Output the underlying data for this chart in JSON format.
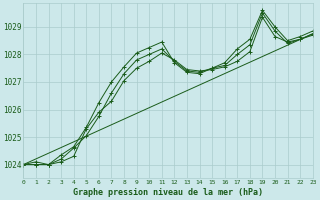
{
  "background_color": "#cce8ea",
  "plot_bg_color": "#cce8ea",
  "grid_color": "#aacccc",
  "line_color": "#1a5c1a",
  "title": "Graphe pression niveau de la mer (hPa)",
  "ylabel_ticks": [
    1024,
    1025,
    1026,
    1027,
    1028,
    1029
  ],
  "xlim": [
    0,
    23
  ],
  "ylim": [
    1023.5,
    1029.85
  ],
  "series": [
    [
      1024.0,
      1024.1,
      1024.0,
      1024.1,
      1024.3,
      1025.3,
      1025.9,
      1026.3,
      1027.05,
      1027.5,
      1027.75,
      1028.05,
      1027.8,
      1027.45,
      1027.4,
      1027.45,
      1027.55,
      1027.75,
      1028.1,
      1029.35,
      1028.65,
      1028.45,
      1028.55,
      1028.7
    ],
    [
      1024.0,
      1024.0,
      1024.0,
      1024.2,
      1024.6,
      1025.05,
      1025.75,
      1026.6,
      1027.3,
      1027.8,
      1028.0,
      1028.2,
      1027.75,
      1027.4,
      1027.35,
      1027.5,
      1027.6,
      1028.0,
      1028.35,
      1029.5,
      1028.85,
      1028.4,
      1028.55,
      1028.75
    ],
    [
      1024.0,
      1024.0,
      1024.0,
      1024.35,
      1024.65,
      1025.35,
      1026.25,
      1027.0,
      1027.55,
      1028.05,
      1028.25,
      1028.45,
      1027.7,
      1027.35,
      1027.3,
      1027.5,
      1027.7,
      1028.2,
      1028.55,
      1029.6,
      1029.0,
      1028.5,
      1028.65,
      1028.85
    ]
  ],
  "trend_line": [
    [
      0,
      23
    ],
    [
      1024.0,
      1028.75
    ]
  ]
}
